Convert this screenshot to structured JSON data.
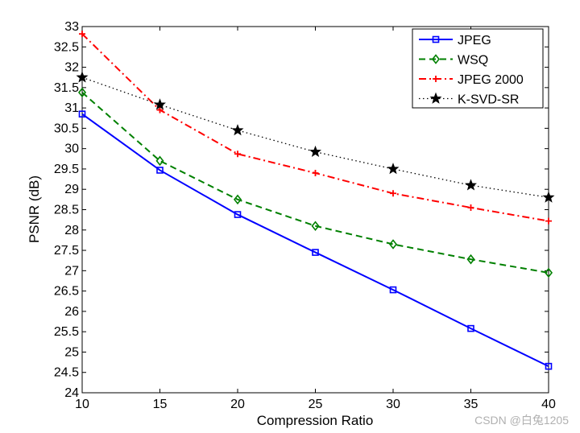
{
  "chart_data": {
    "type": "line",
    "title": "",
    "xlabel": "Compression Ratio",
    "ylabel": "PSNR (dB)",
    "xlim": [
      10,
      40
    ],
    "ylim": [
      24,
      33
    ],
    "xticks": [
      10,
      15,
      20,
      25,
      30,
      35,
      40
    ],
    "yticks": [
      24,
      24.5,
      25,
      25.5,
      26,
      26.5,
      27,
      27.5,
      28,
      28.5,
      29,
      29.5,
      30,
      30.5,
      31,
      31.5,
      32,
      32.5,
      33
    ],
    "grid": false,
    "legend_position": "top-right",
    "x": [
      10,
      15,
      20,
      25,
      30,
      35,
      40
    ],
    "series": [
      {
        "name": "JPEG",
        "color": "#0000ff",
        "line_style": "solid",
        "marker": "square",
        "values": [
          30.85,
          29.47,
          28.38,
          27.45,
          26.53,
          25.58,
          24.65
        ]
      },
      {
        "name": "WSQ",
        "color": "#008000",
        "line_style": "dashed",
        "marker": "diamond",
        "values": [
          31.38,
          29.7,
          28.75,
          28.1,
          27.65,
          27.28,
          26.95
        ]
      },
      {
        "name": "JPEG 2000",
        "color": "#ff0000",
        "line_style": "dash-dot",
        "marker": "plus",
        "values": [
          32.82,
          30.95,
          29.87,
          29.4,
          28.9,
          28.55,
          28.22
        ]
      },
      {
        "name": "K-SVD-SR",
        "color": "#000000",
        "line_style": "dotted",
        "marker": "star",
        "values": [
          31.75,
          31.08,
          30.45,
          29.92,
          29.5,
          29.1,
          28.8
        ]
      }
    ]
  },
  "watermark": "CSDN @白兔1205"
}
